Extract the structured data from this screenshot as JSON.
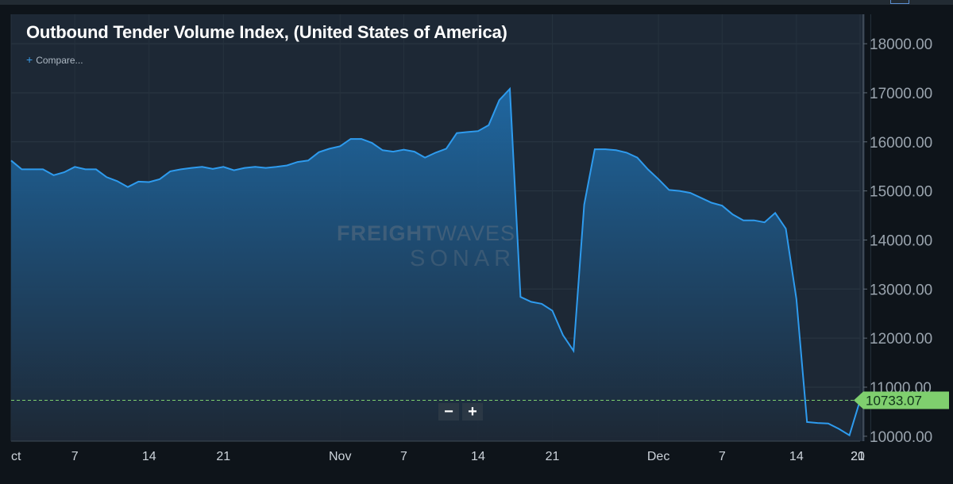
{
  "chart_data": {
    "type": "area",
    "title": "Outbound Tender Volume Index, (United States of America)",
    "compare_label": "Compare...",
    "compare_icon": "plus-icon",
    "watermark": {
      "line1_bold": "FREIGHT",
      "line1_thin": "WAVES",
      "line2": "SONAR"
    },
    "ylim": [
      9900,
      18600
    ],
    "y_ticks": [
      "10000.00",
      "11000.00",
      "12000.00",
      "13000.00",
      "14000.00",
      "15000.00",
      "16000.00",
      "17000.00",
      "18000.00"
    ],
    "y_tick_values": [
      10000,
      11000,
      12000,
      13000,
      14000,
      15000,
      16000,
      17000,
      18000
    ],
    "xlim": [
      "2019-10-01",
      "2019-12-20"
    ],
    "x_ticks": [
      "ct",
      "7",
      "14",
      "21",
      "Nov",
      "7",
      "14",
      "21",
      "Dec",
      "7",
      "14",
      "21",
      "20"
    ],
    "x_tick_dates": [
      "2019-10-01",
      "2019-10-07",
      "2019-10-14",
      "2019-10-21",
      "2019-11-01",
      "2019-11-07",
      "2019-11-14",
      "2019-11-21",
      "2019-12-01",
      "2019-12-07",
      "2019-12-14",
      "2019-12-21",
      "2019-12-20"
    ],
    "last_value_label": "10733.07",
    "last_value": 10733.07,
    "zoom_out_label": "−",
    "zoom_in_label": "+",
    "line_color": "#2e9bee",
    "fill_color": "#1f6ea8",
    "background": "#1d2835",
    "last_value_color": "#7fcf6e",
    "grid": true,
    "series": [
      {
        "x": [
          "2019-10-01",
          "2019-10-02",
          "2019-10-03",
          "2019-10-04",
          "2019-10-05",
          "2019-10-06",
          "2019-10-07",
          "2019-10-08",
          "2019-10-09",
          "2019-10-10",
          "2019-10-11",
          "2019-10-12",
          "2019-10-13",
          "2019-10-14",
          "2019-10-15",
          "2019-10-16",
          "2019-10-17",
          "2019-10-18",
          "2019-10-19",
          "2019-10-20",
          "2019-10-21",
          "2019-10-22",
          "2019-10-23",
          "2019-10-24",
          "2019-10-25",
          "2019-10-26",
          "2019-10-27",
          "2019-10-28",
          "2019-10-29",
          "2019-10-30",
          "2019-10-31",
          "2019-11-01",
          "2019-11-02",
          "2019-11-03",
          "2019-11-04",
          "2019-11-05",
          "2019-11-06",
          "2019-11-07",
          "2019-11-08",
          "2019-11-09",
          "2019-11-10",
          "2019-11-11",
          "2019-11-12",
          "2019-11-13",
          "2019-11-14",
          "2019-11-15",
          "2019-11-16",
          "2019-11-17",
          "2019-11-18",
          "2019-11-19",
          "2019-11-20",
          "2019-11-21",
          "2019-11-22",
          "2019-11-23",
          "2019-11-24",
          "2019-11-25",
          "2019-11-26",
          "2019-11-27",
          "2019-11-28",
          "2019-11-29",
          "2019-11-30",
          "2019-12-01",
          "2019-12-02",
          "2019-12-03",
          "2019-12-04",
          "2019-12-05",
          "2019-12-06",
          "2019-12-07",
          "2019-12-08",
          "2019-12-09",
          "2019-12-10",
          "2019-12-11",
          "2019-12-12",
          "2019-12-13",
          "2019-12-14",
          "2019-12-15",
          "2019-12-16",
          "2019-12-17",
          "2019-12-18",
          "2019-12-19",
          "2019-12-20"
        ],
        "values": [
          15620,
          15440,
          15440,
          15440,
          15320,
          15380,
          15490,
          15440,
          15440,
          15280,
          15200,
          15080,
          15190,
          15180,
          15240,
          15400,
          15440,
          15470,
          15490,
          15450,
          15490,
          15420,
          15470,
          15490,
          15470,
          15490,
          15520,
          15590,
          15620,
          15790,
          15860,
          15910,
          16060,
          16060,
          15980,
          15830,
          15800,
          15840,
          15800,
          15680,
          15780,
          15860,
          16180,
          16200,
          16220,
          16340,
          16850,
          17080,
          12840,
          12740,
          12700,
          12560,
          12060,
          11740,
          14720,
          15850,
          15850,
          15830,
          15780,
          15680,
          15440,
          15240,
          15020,
          15000,
          14960,
          14860,
          14760,
          14700,
          14520,
          14400,
          14400,
          14360,
          14550,
          14230,
          12800,
          10290,
          10270,
          10260,
          10150,
          10020,
          10733.07
        ]
      }
    ]
  }
}
